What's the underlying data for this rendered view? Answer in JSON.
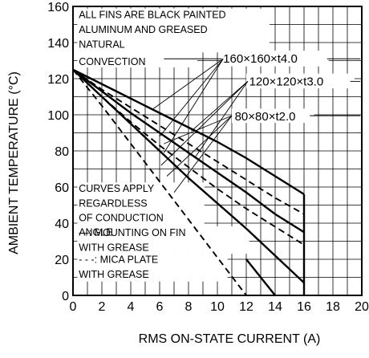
{
  "chart_data": {
    "type": "line",
    "xlabel": "RMS ON-STATE CURRENT  (A)",
    "ylabel": "AMBIENT TEMPERATURE  (°C)",
    "xlim": [
      0,
      20
    ],
    "ylim": [
      0,
      160
    ],
    "x_ticks": [
      "0",
      "2",
      "4",
      "6",
      "8",
      "10",
      "12",
      "14",
      "16",
      "18",
      "20"
    ],
    "y_ticks": [
      "0",
      "20",
      "40",
      "60",
      "80",
      "100",
      "120",
      "140",
      "160"
    ],
    "grid": true,
    "annotations": {
      "fins_note": [
        "ALL FINS ARE BLACK PAINTED",
        "ALUMINUM AND GREASED",
        "NATURAL",
        "CONVECTION"
      ],
      "curves_note": [
        "CURVES APPLY",
        "REGARDLESS",
        "OF CONDUCTION",
        "ANGLE"
      ],
      "legend_solid": [
        "—: MOUNTING ON FIN",
        "WITH GREASE"
      ],
      "legend_dashed": [
        "- - -: MICA PLATE",
        "WITH GREASE"
      ]
    },
    "fin_labels": [
      "160×160×t4.0",
      "120×120×t3.0",
      "80×80×t2.0"
    ],
    "series": [
      {
        "name": "160×160×t4.0",
        "style": "solid",
        "x": [
          0,
          2,
          4,
          6,
          8,
          10,
          12,
          14,
          16
        ],
        "y": [
          125,
          117,
          109,
          101,
          93,
          85,
          76,
          66,
          56
        ]
      },
      {
        "name": "160×160×t4.0",
        "style": "dashed",
        "x": [
          0,
          2,
          4,
          6,
          8,
          10,
          12,
          14,
          16
        ],
        "y": [
          125,
          114,
          104,
          94,
          84,
          74,
          64,
          54,
          45
        ]
      },
      {
        "name": "120×120×t3.0",
        "style": "solid",
        "x": [
          0,
          2,
          4,
          6,
          8,
          10,
          12,
          14,
          16
        ],
        "y": [
          125,
          113,
          101,
          90,
          79,
          68,
          57,
          45,
          35
        ]
      },
      {
        "name": "120×120×t3.0",
        "style": "dashed",
        "x": [
          0,
          2,
          4,
          6,
          8,
          10,
          12,
          14,
          16
        ],
        "y": [
          125,
          110,
          96,
          83,
          71,
          59,
          48,
          38,
          28
        ]
      },
      {
        "name": "80×80×t2.0",
        "style": "solid",
        "x": [
          0,
          2,
          4,
          6,
          8,
          10,
          12,
          14,
          16
        ],
        "y": [
          125,
          110,
          95,
          80,
          65,
          51,
          37,
          22,
          7
        ]
      },
      {
        "name": "80×80×t2.0",
        "style": "dashed",
        "x": [
          0,
          2,
          4,
          6,
          8,
          10,
          12
        ],
        "y": [
          125,
          105,
          84,
          63,
          42,
          21,
          0
        ]
      },
      {
        "name": "",
        "style": "solid",
        "x": [
          12,
          14
        ],
        "y": [
          20,
          0
        ]
      }
    ],
    "end_line": {
      "x": 16,
      "y_from": 0,
      "y_to": 56
    }
  }
}
